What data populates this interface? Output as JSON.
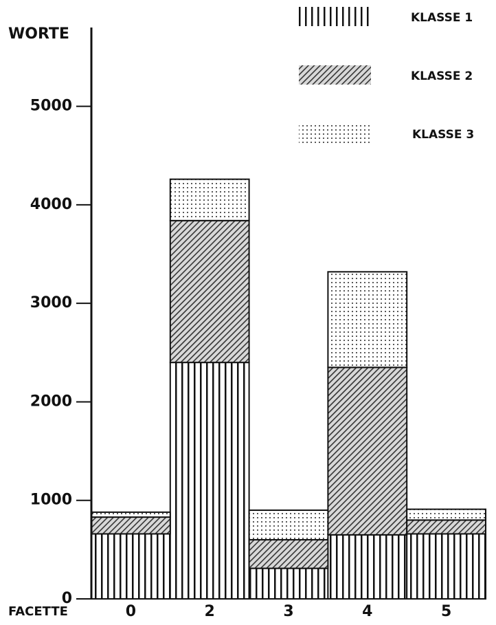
{
  "chart_data": {
    "type": "stacked_bar",
    "y_label": "WORTE",
    "x_label": "FACETTE",
    "categories": [
      "0",
      "2",
      "3",
      "4",
      "5"
    ],
    "series": [
      {
        "name": "KLASSE 1",
        "color": "#111111",
        "pattern": "vertical",
        "values": [
          660,
          2400,
          310,
          650,
          660
        ]
      },
      {
        "name": "KLASSE 2",
        "color": "#111111",
        "pattern": "hatch",
        "values": [
          170,
          1440,
          290,
          1700,
          140
        ]
      },
      {
        "name": "KLASSE 3",
        "color": "#111111",
        "pattern": "dots",
        "values": [
          50,
          420,
          300,
          970,
          110
        ]
      }
    ],
    "ylim": [
      0,
      5800
    ],
    "yticks": [
      0,
      1000,
      2000,
      3000,
      4000,
      5000
    ],
    "legend": "top-right"
  }
}
